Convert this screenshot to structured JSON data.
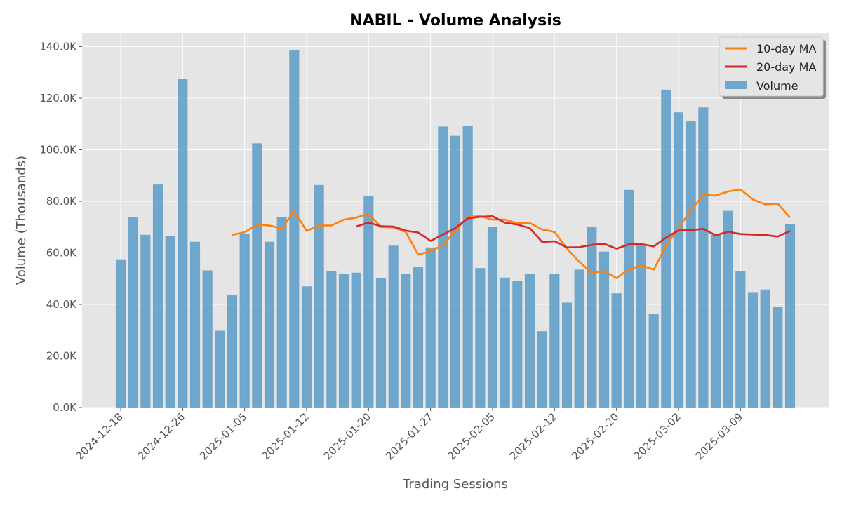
{
  "chart_data": {
    "type": "bar",
    "title": "NABIL - Volume Analysis",
    "xlabel": "Trading Sessions",
    "ylabel": "Volume (Thousands)",
    "ylim": [
      0,
      145000
    ],
    "y_ticks": [
      0,
      20000,
      40000,
      60000,
      80000,
      100000,
      120000,
      140000
    ],
    "y_tick_labels": [
      "0.0K",
      "20.0K",
      "40.0K",
      "60.0K",
      "80.0K",
      "100.0K",
      "120.0K",
      "140.0K"
    ],
    "x_tick_labels": [
      {
        "index": 0,
        "label": "2024-12-18"
      },
      {
        "index": 5,
        "label": "2024-12-26"
      },
      {
        "index": 10,
        "label": "2025-01-05"
      },
      {
        "index": 15,
        "label": "2025-01-12"
      },
      {
        "index": 20,
        "label": "2025-01-20"
      },
      {
        "index": 25,
        "label": "2025-01-27"
      },
      {
        "index": 30,
        "label": "2025-02-05"
      },
      {
        "index": 35,
        "label": "2025-02-12"
      },
      {
        "index": 40,
        "label": "2025-02-20"
      },
      {
        "index": 45,
        "label": "2025-03-02"
      },
      {
        "index": 50,
        "label": "2025-03-09"
      }
    ],
    "grid": true,
    "legend_position": "top-right",
    "series": [
      {
        "name": "Volume",
        "kind": "bar",
        "color": "#5b9bc8",
        "values": [
          57500,
          73800,
          67000,
          86500,
          66500,
          127500,
          64300,
          53200,
          29800,
          43700,
          67400,
          102500,
          64300,
          74000,
          138500,
          47000,
          86300,
          53000,
          51800,
          52300,
          82200,
          50100,
          62800,
          51900,
          54600,
          62100,
          109000,
          105400,
          109300,
          54100,
          70000,
          50400,
          49200,
          51800,
          29600,
          51800,
          40700,
          53500,
          70200,
          60500,
          44300,
          84400,
          63500,
          36300,
          123300,
          114500,
          111000,
          116400,
          67000,
          76300,
          52900,
          44500,
          45800,
          39100,
          71300
        ]
      },
      {
        "name": "10-day MA",
        "kind": "line",
        "color": "#ff7f0e",
        "start_index": 9,
        "values": [
          67000,
          68000,
          70900,
          70600,
          69400,
          76300,
          68500,
          70600,
          70600,
          72900,
          73700,
          75200,
          70000,
          69900,
          68100,
          59300,
          60800,
          62900,
          68600,
          74000,
          74200,
          72900,
          72900,
          71500,
          71600,
          69100,
          68100,
          61700,
          56500,
          52300,
          52900,
          50200,
          53700,
          55100,
          53500,
          62700,
          69700,
          76500,
          82500,
          82200,
          83800,
          84600,
          80700,
          78800,
          79100,
          73700
        ]
      },
      {
        "name": "20-day MA",
        "kind": "line",
        "color": "#d62728",
        "start_index": 19,
        "values": [
          70200,
          71800,
          70300,
          70200,
          68600,
          67900,
          64600,
          67100,
          69600,
          73400,
          74000,
          74200,
          71700,
          71000,
          69600,
          64200,
          64500,
          62100,
          62200,
          63100,
          63500,
          61600,
          63300,
          63400,
          62500,
          65900,
          68700,
          68800,
          69300,
          66800,
          68200,
          67300,
          67100,
          66900,
          66300,
          68500
        ]
      }
    ]
  }
}
